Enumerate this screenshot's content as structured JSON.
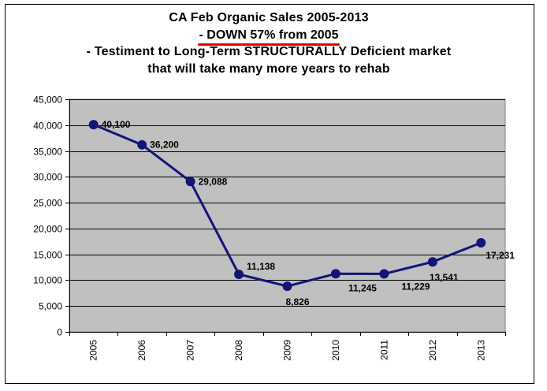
{
  "chart_data": {
    "type": "line",
    "title_lines": [
      "CA Feb Organic Sales 2005-2013",
      "- DOWN 57% from 2005",
      "- Testiment to Long-Term STRUCTURALLY Deficient market",
      "that will take many more years to rehab"
    ],
    "categories": [
      "2005",
      "2006",
      "2007",
      "2008",
      "2009",
      "2010",
      "2011",
      "2012",
      "2013"
    ],
    "values": [
      40100,
      36200,
      29088,
      11138,
      8826,
      11245,
      11229,
      13541,
      17231
    ],
    "data_labels": [
      "40,100",
      "36,200",
      "29,088",
      "11,138",
      "8,826",
      "11,245",
      "11,229",
      "13,541",
      "17,231"
    ],
    "y_ticks": [
      "0",
      "5,000",
      "10,000",
      "15,000",
      "20,000",
      "25,000",
      "30,000",
      "35,000",
      "40,000",
      "45,000"
    ],
    "ylim": [
      0,
      45000
    ],
    "y_tick_step": 5000,
    "grid": true,
    "legend": "none",
    "xlabel": "",
    "ylabel": "",
    "colors": {
      "line": "#141478",
      "marker": "#141478",
      "plot_background": "#c0c0c0",
      "gridline": "#000000",
      "title_underline": "#e60000"
    }
  }
}
